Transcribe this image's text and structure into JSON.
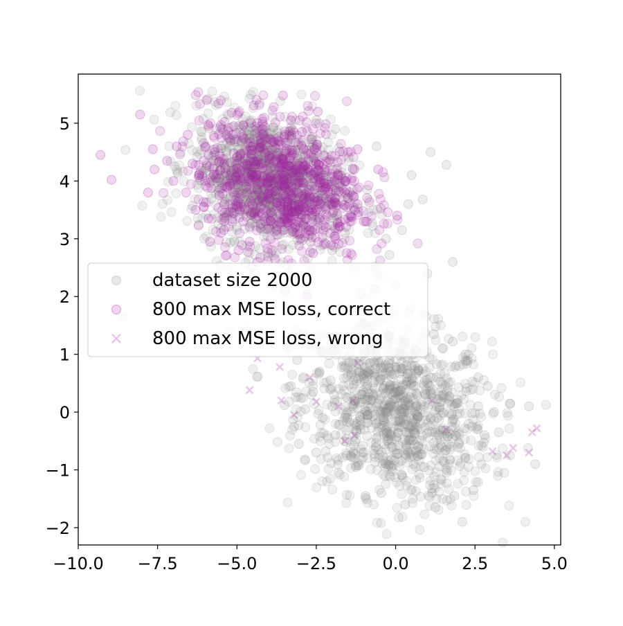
{
  "chart_data": {
    "type": "scatter",
    "title": "",
    "xlabel": "",
    "ylabel": "",
    "xlim": [
      -10.0,
      5.2
    ],
    "ylim": [
      -2.3,
      5.85
    ],
    "x_ticks": [
      -10.0,
      -7.5,
      -5.0,
      -2.5,
      0.0,
      2.5,
      5.0
    ],
    "x_tick_labels": [
      "−10.0",
      "−7.5",
      "−5.0",
      "−2.5",
      "0.0",
      "2.5",
      "5.0"
    ],
    "y_ticks": [
      -2,
      -1,
      0,
      1,
      2,
      3,
      4,
      5
    ],
    "y_tick_labels": [
      "−2",
      "−1",
      "0",
      "1",
      "2",
      "3",
      "4",
      "5"
    ],
    "grid": false,
    "legend_position": "center-left",
    "series": [
      {
        "name": "dataset size 2000",
        "marker": "circle",
        "color": "#808080",
        "alpha": 0.15,
        "cluster_summary": [
          {
            "center": [
              0.0,
              0.0
            ],
            "spread": [
              1.5,
              0.75
            ],
            "approx_count": 1000
          },
          {
            "center": [
              -4.0,
              4.0
            ],
            "spread": [
              1.2,
              0.55
            ],
            "approx_count": 1000
          }
        ],
        "points": [
          [
            1.1,
            4.5
          ],
          [
            1.6,
            4.28
          ],
          [
            -0.6,
            4.6
          ],
          [
            -1.9,
            4.9
          ],
          [
            -2.5,
            5.05
          ],
          [
            0.85,
            3.68
          ],
          [
            1.8,
            2.6
          ],
          [
            0.2,
            3.15
          ],
          [
            -0.2,
            2.72
          ],
          [
            -0.55,
            2.35
          ],
          [
            1.0,
            2.4
          ],
          [
            0.0,
            2.2
          ],
          [
            -1.3,
            2.5
          ],
          [
            -1.1,
            2.05
          ],
          [
            0.4,
            3.6
          ],
          [
            -0.3,
            3.0
          ],
          [
            0.5,
            4.1
          ],
          [
            -1.6,
            3.1
          ],
          [
            -2.0,
            2.8
          ],
          [
            -0.9,
            3.85
          ],
          [
            -8.6,
            1.65
          ],
          [
            -6.0,
            1.7
          ],
          [
            -4.7,
            1.4
          ],
          [
            -3.4,
            1.1
          ],
          [
            -2.9,
            1.35
          ],
          [
            -3.1,
            0.9
          ],
          [
            -2.4,
            0.7
          ],
          [
            -1.8,
            1.1
          ],
          [
            -0.85,
            1.45
          ],
          [
            1.2,
            1.35
          ],
          [
            1.8,
            1.22
          ],
          [
            2.2,
            1.0
          ],
          [
            2.6,
            0.6
          ],
          [
            2.9,
            0.45
          ],
          [
            3.1,
            0.0
          ],
          [
            3.25,
            -0.35
          ],
          [
            3.6,
            0.15
          ],
          [
            4.2,
            0.1
          ],
          [
            4.4,
            -0.9
          ],
          [
            3.6,
            -0.75
          ],
          [
            2.7,
            -0.9
          ],
          [
            2.45,
            -1.35
          ],
          [
            2.1,
            -1.9
          ],
          [
            1.85,
            -1.45
          ],
          [
            1.25,
            -1.65
          ],
          [
            1.15,
            -1.4
          ],
          [
            0.3,
            -1.6
          ],
          [
            -0.45,
            -1.4
          ],
          [
            -0.95,
            -1.45
          ],
          [
            -1.25,
            -0.95
          ],
          [
            -1.55,
            -0.75
          ],
          [
            -2.5,
            -0.7
          ],
          [
            -3.05,
            -0.55
          ],
          [
            -3.2,
            -0.25
          ],
          [
            -2.85,
            0.05
          ],
          [
            -3.3,
            0.45
          ],
          [
            -3.5,
            0.12
          ],
          [
            -2.6,
            0.35
          ],
          [
            -2.05,
            0.55
          ],
          [
            -1.4,
            0.65
          ],
          [
            -0.8,
            0.85
          ],
          [
            -0.2,
            0.9
          ],
          [
            0.6,
            0.8
          ],
          [
            1.0,
            0.5
          ],
          [
            1.5,
            0.3
          ],
          [
            1.9,
            0.15
          ],
          [
            2.3,
            -0.2
          ],
          [
            2.0,
            -0.55
          ],
          [
            1.5,
            -0.85
          ],
          [
            0.9,
            -0.95
          ],
          [
            0.4,
            -0.7
          ],
          [
            -0.1,
            -0.6
          ],
          [
            -0.6,
            -0.45
          ],
          [
            -1.1,
            -0.3
          ],
          [
            -1.6,
            -0.1
          ],
          [
            -2.0,
            0.1
          ],
          [
            -1.3,
            0.2
          ],
          [
            -0.7,
            0.3
          ],
          [
            -0.2,
            0.1
          ],
          [
            0.3,
            0.2
          ],
          [
            0.8,
            0.05
          ],
          [
            1.3,
            -0.1
          ],
          [
            0.6,
            -0.3
          ],
          [
            0.1,
            -0.15
          ],
          [
            -0.4,
            0.0
          ],
          [
            -0.9,
            -0.05
          ],
          [
            0.0,
            0.45
          ],
          [
            0.5,
            0.5
          ],
          [
            -0.5,
            0.55
          ],
          [
            1.1,
            0.6
          ],
          [
            -1.9,
            -0.4
          ],
          [
            -2.3,
            -0.1
          ],
          [
            2.6,
            0.1
          ],
          [
            2.8,
            -0.4
          ],
          [
            0.7,
            -0.6
          ],
          [
            -0.3,
            -0.9
          ],
          [
            0.2,
            -1.1
          ],
          [
            1.6,
            -1.05
          ],
          [
            -1.0,
            -0.7
          ],
          [
            0.9,
            1.0
          ]
        ]
      },
      {
        "name": "800 max MSE loss, correct",
        "marker": "circle",
        "color": "#a020a0",
        "alpha": 0.18,
        "cluster_summary": [
          {
            "center": [
              -3.6,
              3.95
            ],
            "spread": [
              1.3,
              0.6
            ],
            "approx_count": 800
          }
        ],
        "points": [
          [
            -9.3,
            4.45
          ],
          [
            -8.95,
            4.02
          ],
          [
            -8.05,
            5.15
          ],
          [
            -7.8,
            3.8
          ],
          [
            -7.65,
            4.55
          ],
          [
            -7.6,
            4.2
          ],
          [
            -7.2,
            4.35
          ],
          [
            -6.9,
            4.6
          ],
          [
            -6.55,
            4.8
          ],
          [
            -6.3,
            3.5
          ],
          [
            -6.2,
            4.1
          ],
          [
            -5.95,
            5.4
          ],
          [
            -5.9,
            3.35
          ],
          [
            -5.85,
            2.95
          ],
          [
            -5.5,
            3.1
          ],
          [
            -5.2,
            4.7
          ],
          [
            -5.1,
            4.95
          ],
          [
            -4.95,
            2.8
          ],
          [
            -4.6,
            2.95
          ],
          [
            -4.2,
            4.9
          ],
          [
            -3.55,
            5.48
          ],
          [
            -3.3,
            5.05
          ],
          [
            -2.95,
            4.85
          ],
          [
            -2.6,
            2.75
          ],
          [
            -2.45,
            5.2
          ],
          [
            -1.9,
            3.05
          ],
          [
            -1.5,
            4.5
          ],
          [
            -1.3,
            4.2
          ],
          [
            -1.2,
            3.6
          ],
          [
            -1.0,
            3.3
          ],
          [
            -0.55,
            4.2
          ],
          [
            0.05,
            3.4
          ],
          [
            -3.8,
            2.65
          ],
          [
            -4.35,
            2.6
          ],
          [
            -4.8,
            3.3
          ],
          [
            -5.4,
            3.6
          ],
          [
            -6.6,
            3.8
          ],
          [
            -7.0,
            4.0
          ],
          [
            -3.0,
            3.0
          ],
          [
            -2.2,
            3.2
          ],
          [
            -3.6,
            3.95
          ],
          [
            -3.2,
            4.2
          ],
          [
            -4.0,
            3.7
          ],
          [
            -4.4,
            4.1
          ],
          [
            -3.9,
            4.4
          ],
          [
            -2.8,
            3.8
          ],
          [
            -2.5,
            4.3
          ],
          [
            -4.7,
            3.9
          ],
          [
            -5.0,
            4.3
          ],
          [
            -5.3,
            3.9
          ],
          [
            -3.4,
            3.5
          ],
          [
            -2.9,
            4.55
          ],
          [
            -4.1,
            3.3
          ],
          [
            -2.2,
            3.9
          ],
          [
            -1.8,
            4.1
          ],
          [
            -5.7,
            4.5
          ],
          [
            -6.0,
            4.0
          ],
          [
            -3.7,
            4.7
          ],
          [
            -4.5,
            4.6
          ],
          [
            -2.0,
            3.6
          ],
          [
            -3.1,
            3.3
          ],
          [
            -3.5,
            4.25
          ],
          [
            -4.25,
            3.55
          ],
          [
            -2.65,
            3.5
          ],
          [
            -5.55,
            3.75
          ],
          [
            -1.6,
            3.8
          ],
          [
            -3.95,
            4.05
          ],
          [
            -3.25,
            3.7
          ],
          [
            -4.6,
            4.35
          ],
          [
            -2.35,
            4.05
          ],
          [
            -1.2,
            4.55
          ],
          [
            -6.4,
            4.3
          ],
          [
            -5.1,
            3.45
          ],
          [
            -3.75,
            3.15
          ],
          [
            -2.75,
            4.15
          ]
        ]
      },
      {
        "name": "800 max MSE loss, wrong",
        "marker": "x",
        "color": "#a020a0",
        "alpha": 0.18,
        "points": [
          [
            -4.35,
            0.93
          ],
          [
            -3.65,
            0.78
          ],
          [
            -4.6,
            0.38
          ],
          [
            -3.6,
            0.2
          ],
          [
            -3.2,
            -0.05
          ],
          [
            -2.5,
            0.18
          ],
          [
            -1.8,
            0.1
          ],
          [
            -1.6,
            -0.5
          ],
          [
            -1.35,
            0.2
          ],
          [
            -1.3,
            -0.4
          ],
          [
            -2.7,
            0.6
          ],
          [
            -1.2,
            0.85
          ],
          [
            1.15,
            0.2
          ],
          [
            1.6,
            -0.3
          ],
          [
            3.5,
            -0.75
          ],
          [
            3.7,
            -0.62
          ],
          [
            4.2,
            -0.7
          ],
          [
            4.3,
            -0.35
          ],
          [
            4.45,
            -0.28
          ],
          [
            3.05,
            -0.68
          ]
        ]
      }
    ]
  }
}
